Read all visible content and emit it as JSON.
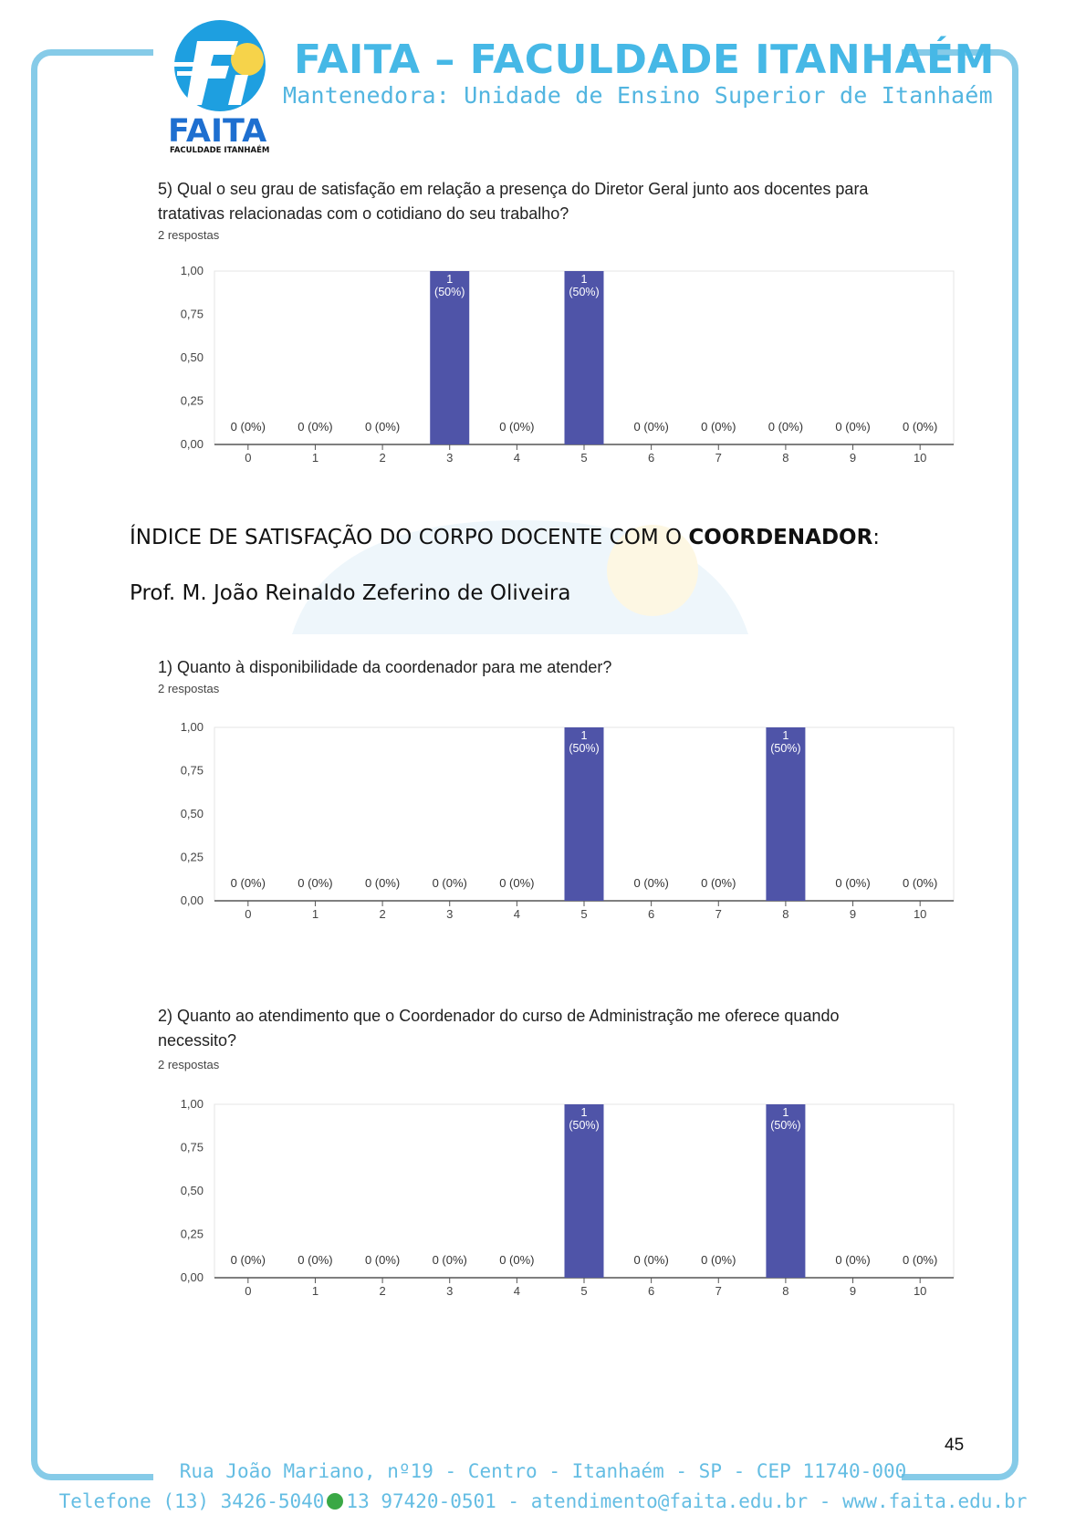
{
  "header": {
    "title": "FAITA – FACULDADE ITANHAÉM",
    "subtitle": "Mantenedora: Unidade de Ensino Superior de Itanhaém",
    "logo_text": "FAITA",
    "logo_subtext": "FACULDADE ITANHAÉM"
  },
  "q5": {
    "question_line1": "5) Qual o seu grau de satisfação em relação a presença do Diretor Geral junto aos docentes para",
    "question_line2": "tratativas relacionadas com o cotidiano do seu trabalho?",
    "responses": "2 respostas"
  },
  "section": {
    "title_prefix": "ÍNDICE DE SATISFAÇÃO DO CORPO DOCENTE COM O ",
    "title_bold": "COORDENADOR",
    "title_suffix": ":",
    "person": "Prof. M. João Reinaldo Zeferino de Oliveira"
  },
  "c1": {
    "question": "1)  Quanto à disponibilidade da coordenador para me atender?",
    "responses": "2 respostas"
  },
  "c2": {
    "question_line1": "2) Quanto ao atendimento que o Coordenador do curso de Administração  me oferece quando",
    "question_line2": "necessito?",
    "responses": "2 respostas"
  },
  "chart_data": [
    {
      "type": "bar",
      "categories": [
        "0",
        "1",
        "2",
        "3",
        "4",
        "5",
        "6",
        "7",
        "8",
        "9",
        "10"
      ],
      "values": [
        0,
        0,
        0,
        1,
        0,
        1,
        0,
        0,
        0,
        0,
        0
      ],
      "labels": [
        "0 (0%)",
        "0 (0%)",
        "0 (0%)",
        "1|(50%)",
        "0 (0%)",
        "1|(50%)",
        "0 (0%)",
        "0 (0%)",
        "0 (0%)",
        "0 (0%)",
        "0 (0%)"
      ],
      "yticks": [
        "0,00",
        "0,25",
        "0,50",
        "0,75",
        "1,00"
      ],
      "ylim": [
        0,
        1
      ],
      "color": "#4f54a8"
    },
    {
      "type": "bar",
      "categories": [
        "0",
        "1",
        "2",
        "3",
        "4",
        "5",
        "6",
        "7",
        "8",
        "9",
        "10"
      ],
      "values": [
        0,
        0,
        0,
        0,
        0,
        1,
        0,
        0,
        1,
        0,
        0
      ],
      "labels": [
        "0 (0%)",
        "0 (0%)",
        "0 (0%)",
        "0 (0%)",
        "0 (0%)",
        "1|(50%)",
        "0 (0%)",
        "0 (0%)",
        "1|(50%)",
        "0 (0%)",
        "0 (0%)"
      ],
      "yticks": [
        "0,00",
        "0,25",
        "0,50",
        "0,75",
        "1,00"
      ],
      "ylim": [
        0,
        1
      ],
      "color": "#4f54a8"
    },
    {
      "type": "bar",
      "categories": [
        "0",
        "1",
        "2",
        "3",
        "4",
        "5",
        "6",
        "7",
        "8",
        "9",
        "10"
      ],
      "values": [
        0,
        0,
        0,
        0,
        0,
        1,
        0,
        0,
        1,
        0,
        0
      ],
      "labels": [
        "0 (0%)",
        "0 (0%)",
        "0 (0%)",
        "0 (0%)",
        "0 (0%)",
        "1|(50%)",
        "0 (0%)",
        "0 (0%)",
        "1|(50%)",
        "0 (0%)",
        "0 (0%)"
      ],
      "yticks": [
        "0,00",
        "0,25",
        "0,50",
        "0,75",
        "1,00"
      ],
      "ylim": [
        0,
        1
      ],
      "color": "#4f54a8"
    }
  ],
  "footer": {
    "address": "Rua João Mariano, nº19 - Centro - Itanhaém - SP - CEP 11740-000",
    "phone": "Telefone (13) 3426-5040",
    "whatsapp_icon": "whatsapp-icon",
    "contacts": "13 97420-0501 - atendimento@faita.edu.br - www.faita.edu.br"
  },
  "page_number": "45"
}
